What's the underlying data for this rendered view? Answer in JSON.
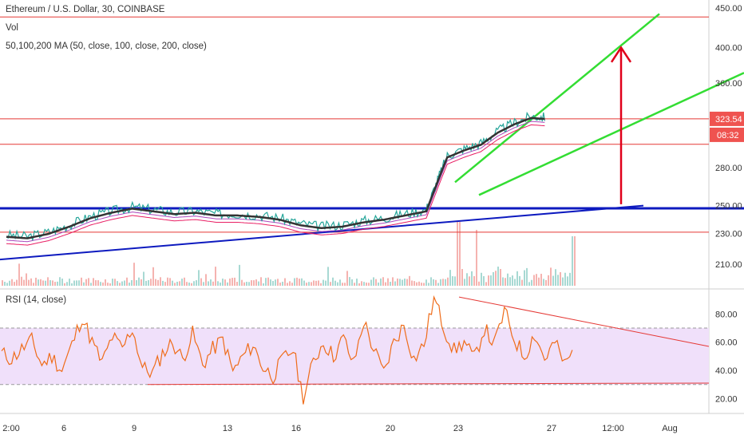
{
  "chart_data": [
    {
      "type": "line",
      "panel": "price",
      "title": "Ethereum / U.S. Dollar, 30, COINBASE",
      "indicators": [
        "Vol",
        "50,100,200 MA (50, close, 100, close, 200, close)"
      ],
      "y_scale": "log",
      "ylim": [
        197,
        452
      ],
      "y_ticks": [
        "450.00",
        "400.00",
        "360.00",
        "323.54",
        "280.00",
        "250.00",
        "230.00",
        "210.00"
      ],
      "last_price_label": "323.54",
      "countdown_label": "08:32",
      "x_ticks": [
        "2:00",
        "6",
        "9",
        "13",
        "16",
        "20",
        "23",
        "27",
        "12:00",
        "Aug"
      ],
      "series": [
        {
          "values": [
            229,
            228,
            231,
            236,
            242,
            246,
            249,
            247,
            245,
            246,
            244,
            244,
            243,
            241,
            237,
            235,
            236,
            239,
            241,
            244,
            247,
            268,
            290,
            296,
            301,
            312,
            320,
            326,
            325
          ]
        }
      ],
      "x_positions_days": [
        0,
        1,
        2,
        3,
        4,
        5,
        6,
        7,
        8,
        9,
        10,
        11,
        12,
        13,
        14,
        15,
        16,
        17,
        18,
        19,
        20,
        20.5,
        21,
        21.8,
        22.6,
        23.4,
        24.2,
        25,
        25.7
      ],
      "horizontal_levels": [
        438,
        323.54,
        300,
        248,
        231
      ],
      "ma_color": "#333333",
      "colors": {
        "price": "#26a69a",
        "ma": "#333333",
        "ma2": "#ab47bc",
        "ma3": "#e91e63",
        "levels": "#e53935",
        "channel": "#33dd33",
        "support": "#0d1abf",
        "arrow": "#e0001a"
      }
    },
    {
      "type": "line",
      "panel": "rsi",
      "title": "RSI (14, close)",
      "ylim": [
        14,
        96
      ],
      "y_ticks": [
        "80.00",
        "60.00",
        "40.00",
        "20.00"
      ],
      "band": [
        30,
        70
      ],
      "series": [
        {
          "values": [
            52,
            48,
            55,
            61,
            44,
            50,
            40,
            58,
            78,
            60,
            45,
            64,
            55,
            70,
            42,
            38,
            52,
            60,
            48,
            66,
            44,
            55,
            62,
            39,
            50,
            58,
            42,
            36,
            48,
            55,
            20,
            46,
            60,
            50,
            63,
            44,
            75,
            55,
            38,
            60,
            72,
            48,
            58,
            92,
            70,
            54,
            60,
            48,
            70,
            58,
            82,
            62,
            50,
            66,
            48,
            60,
            44,
            55
          ]
        }
      ],
      "colors": {
        "rsi": "#ef6c1a",
        "band": "#f0e0fa",
        "trend": "#e53935"
      }
    }
  ]
}
